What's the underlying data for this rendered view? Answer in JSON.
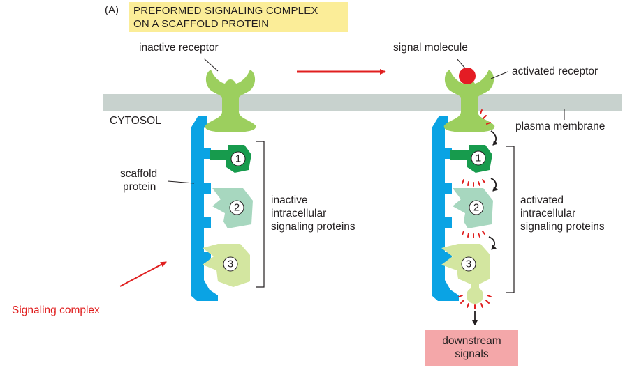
{
  "panel_label": "(A)",
  "title": {
    "line1": "PREFORMED SIGNALING COMPLEX",
    "line2": "ON A SCAFFOLD PROTEIN"
  },
  "labels": {
    "inactive_receptor": "inactive receptor",
    "signal_molecule": "signal molecule",
    "activated_receptor": "activated receptor",
    "cytosol": "CYTOSOL",
    "plasma_membrane": "plasma membrane",
    "scaffold_protein_1": "scaffold",
    "scaffold_protein_2": "protein",
    "inactive_group": [
      "inactive",
      "intracellular",
      "signaling proteins"
    ],
    "activated_group": [
      "activated",
      "intracellular",
      "signaling proteins"
    ],
    "signaling_complex": "Signaling complex",
    "downstream": [
      "downstream",
      "signals"
    ]
  },
  "protein_numbers": [
    "1",
    "2",
    "3"
  ],
  "colors": {
    "membrane": "#c8d2ce",
    "scaffold": "#0aa3e4",
    "receptor": "#9ccf5e",
    "protein1": "#179b4d",
    "protein2": "#a7d7bf",
    "protein3": "#d3e6a0",
    "signal": "#e41c24",
    "annotation_red": "#e01f1f",
    "title_bg": "#fbed98",
    "downstream_bg": "#f4a7a9"
  }
}
